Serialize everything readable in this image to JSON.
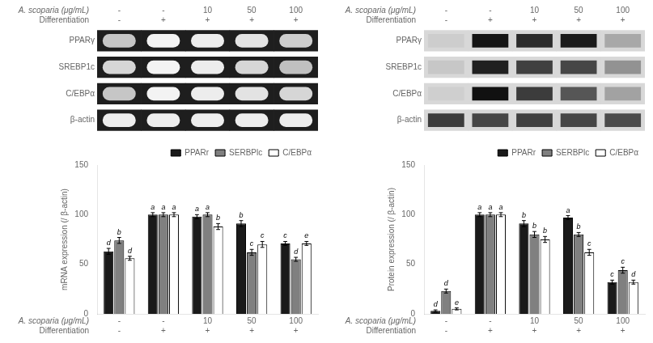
{
  "chart_data": [
    {
      "type": "heatmap",
      "categories": [
        [
          "-",
          "-"
        ],
        [
          "-",
          "+"
        ],
        [
          "10",
          "+"
        ],
        [
          "50",
          "+"
        ],
        [
          "100",
          "+"
        ]
      ],
      "y_categories": [
        "PPARγ",
        "SREBP1c",
        "C/EBPα",
        "β-actin"
      ],
      "cells": [
        [
          0.75,
          0.95,
          0.92,
          0.88,
          0.78
        ],
        [
          0.82,
          0.95,
          0.92,
          0.82,
          0.72
        ],
        [
          0.75,
          0.95,
          0.92,
          0.88,
          0.82
        ],
        [
          0.92,
          0.92,
          0.92,
          0.92,
          0.92
        ]
      ],
      "color": "#ffffff",
      "annotations": [
        "A. scoparia (μg/mL)",
        "Differentiation"
      ],
      "grid": false
    },
    {
      "type": "bar",
      "categories": [
        [
          "-",
          "-"
        ],
        [
          "-",
          "+"
        ],
        [
          "10",
          "+"
        ],
        [
          "50",
          "+"
        ],
        [
          "100",
          "+"
        ]
      ],
      "ylabel": "mRNA expression (/ β-actin)",
      "ylim": [
        0,
        150
      ],
      "yticks": [
        0,
        50,
        100,
        150
      ],
      "series": [
        {
          "name": "PPARr",
          "color": "#1a1a1a",
          "values": [
            63,
            100,
            98,
            91,
            71
          ],
          "errors": [
            3,
            2,
            2,
            3,
            2
          ],
          "letters": [
            "d",
            "a",
            "a",
            "b",
            "c"
          ]
        },
        {
          "name": "SERBPlc",
          "color": "#808080",
          "values": [
            74,
            100,
            100,
            62,
            55
          ],
          "errors": [
            3,
            2,
            2,
            3,
            2
          ],
          "letters": [
            "b",
            "a",
            "a",
            "c",
            "d"
          ]
        },
        {
          "name": "C/EBPα",
          "color": "#ffffff",
          "values": [
            56,
            100,
            88,
            70,
            71
          ],
          "errors": [
            2,
            2,
            3,
            3,
            2
          ],
          "letters": [
            "d",
            "a",
            "b",
            "c",
            "e"
          ]
        }
      ],
      "annotations": [
        "A. scoparia (μg/mL)",
        "Differentiation"
      ],
      "legend": "upper right",
      "grid": false
    },
    {
      "type": "heatmap",
      "categories": [
        [
          "-",
          "-"
        ],
        [
          "-",
          "+"
        ],
        [
          "10",
          "+"
        ],
        [
          "50",
          "+"
        ],
        [
          "100",
          "+"
        ]
      ],
      "y_categories": [
        "PPARγ",
        "SREBP1c",
        "C/EBPα",
        "β-actin"
      ],
      "cells": [
        [
          0.05,
          0.9,
          0.8,
          0.88,
          0.22
        ],
        [
          0.08,
          0.85,
          0.7,
          0.68,
          0.32
        ],
        [
          0.04,
          0.92,
          0.72,
          0.6,
          0.25
        ],
        [
          0.72,
          0.68,
          0.7,
          0.68,
          0.65
        ]
      ],
      "color": "#000000",
      "annotations": [
        "A. scoparia (μg/mL)",
        "Differentiation"
      ],
      "grid": false
    },
    {
      "type": "bar",
      "categories": [
        [
          "-",
          "-"
        ],
        [
          "-",
          "+"
        ],
        [
          "10",
          "+"
        ],
        [
          "50",
          "+"
        ],
        [
          "100",
          "+"
        ]
      ],
      "ylabel": "Protein expression (/ β-actin)",
      "ylim": [
        0,
        150
      ],
      "yticks": [
        0,
        50,
        100,
        150
      ],
      "series": [
        {
          "name": "PPARr",
          "color": "#1a1a1a",
          "values": [
            3,
            100,
            91,
            97,
            32
          ],
          "errors": [
            1,
            2,
            3,
            2,
            2
          ],
          "letters": [
            "d",
            "a",
            "b",
            "a",
            "c"
          ]
        },
        {
          "name": "SERBPlc",
          "color": "#808080",
          "values": [
            23,
            100,
            80,
            80,
            44
          ],
          "errors": [
            2,
            2,
            3,
            2,
            3
          ],
          "letters": [
            "d",
            "a",
            "b",
            "b",
            "c"
          ]
        },
        {
          "name": "C/EBPα",
          "color": "#ffffff",
          "values": [
            5,
            100,
            75,
            62,
            32
          ],
          "errors": [
            1,
            2,
            3,
            3,
            2
          ],
          "letters": [
            "e",
            "a",
            "b",
            "c",
            "d"
          ]
        }
      ],
      "annotations": [
        "A. scoparia (μg/mL)",
        "Differentiation"
      ],
      "legend": "upper right",
      "grid": false
    }
  ]
}
